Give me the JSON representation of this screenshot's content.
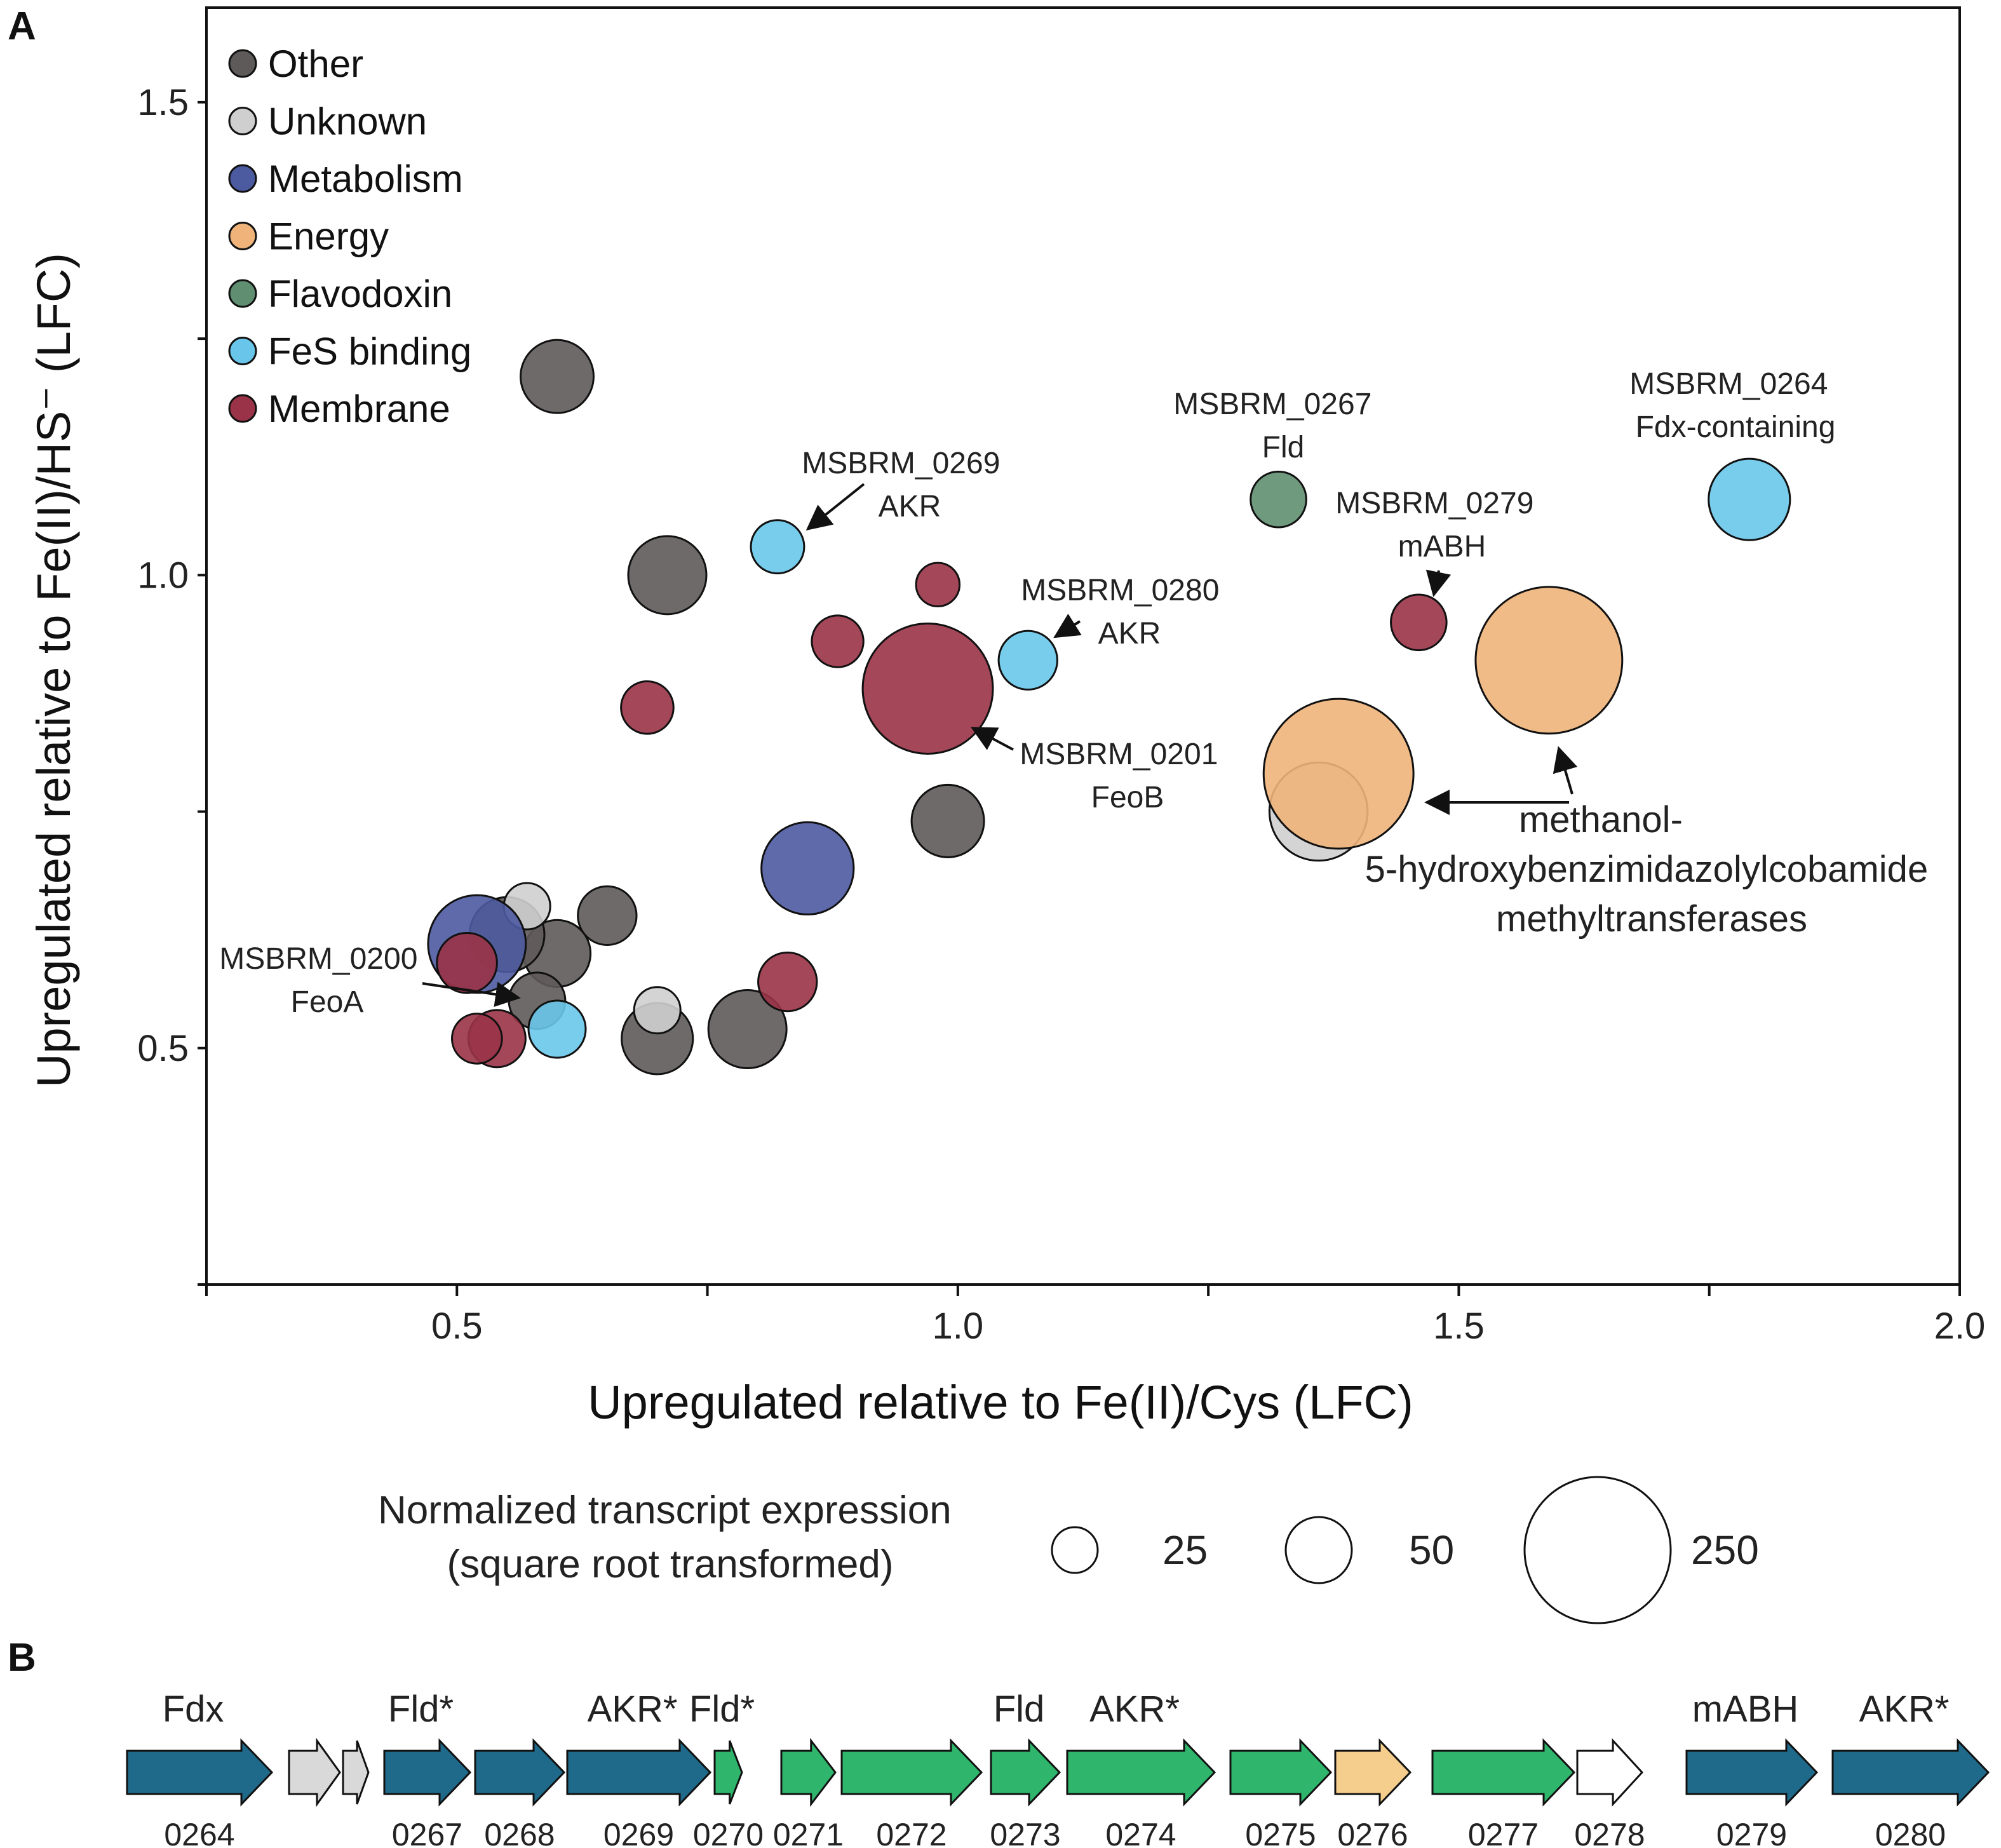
{
  "panel_a_label": "A",
  "panel_b_label": "B",
  "colors": {
    "Other": "#5f5a5a",
    "Unknown": "#cfcfcf",
    "Metabolism": "#4c5aa0",
    "Energy": "#f0b47a",
    "Flavodoxin": "#5f8f70",
    "FeS binding": "#69c6ea",
    "Membrane": "#9a3347",
    "gene_dark": "#1f6a8a",
    "gene_green": "#2fb56c",
    "gene_gray": "#d9d9d9",
    "gene_orange": "#f5cd8c",
    "gene_white": "#ffffff"
  },
  "chart_data": {
    "type": "scatter",
    "title": "",
    "xlabel": "Upregulated relative to Fe(II)/Cys (LFC)",
    "ylabel": "Upregulated relative to Fe(II)/HS⁻ (LFC)",
    "xlim": [
      0.25,
      2.0
    ],
    "ylim": [
      0.25,
      1.6
    ],
    "xticks": [
      0.5,
      1.0,
      1.5,
      2.0
    ],
    "xtick_labels": [
      "0.5",
      "1.0",
      "1.5",
      "2.0"
    ],
    "yticks": [
      0.5,
      1.0,
      1.5
    ],
    "ytick_labels": [
      "0.5",
      "1.0",
      "1.5"
    ],
    "legend": {
      "position": "top-left",
      "entries": [
        "Other",
        "Unknown",
        "Metabolism",
        "Energy",
        "Flavodoxin",
        "FeS binding",
        "Membrane"
      ]
    },
    "points": [
      {
        "x": 0.6,
        "y": 1.21,
        "size": 62,
        "cat": "Other"
      },
      {
        "x": 0.71,
        "y": 1.0,
        "size": 71,
        "cat": "Other"
      },
      {
        "x": 0.99,
        "y": 0.74,
        "size": 61,
        "cat": "Other"
      },
      {
        "x": 0.79,
        "y": 0.52,
        "size": 71,
        "cat": "Other"
      },
      {
        "x": 0.7,
        "y": 0.51,
        "size": 59,
        "cat": "Other"
      },
      {
        "x": 0.65,
        "y": 0.64,
        "size": 40,
        "cat": "Other"
      },
      {
        "x": 0.6,
        "y": 0.6,
        "size": 52,
        "cat": "Other"
      },
      {
        "x": 0.55,
        "y": 0.62,
        "size": 65,
        "cat": "Other"
      },
      {
        "x": 0.58,
        "y": 0.55,
        "size": 37,
        "cat": "Other"
      },
      {
        "x": 0.57,
        "y": 0.65,
        "size": 25,
        "cat": "Unknown"
      },
      {
        "x": 0.7,
        "y": 0.54,
        "size": 25,
        "cat": "Unknown"
      },
      {
        "x": 1.36,
        "y": 0.75,
        "size": 112,
        "cat": "Unknown"
      },
      {
        "x": 0.52,
        "y": 0.61,
        "size": 111,
        "cat": "Metabolism"
      },
      {
        "x": 0.85,
        "y": 0.69,
        "size": 99,
        "cat": "Metabolism"
      },
      {
        "x": 1.38,
        "y": 0.79,
        "size": 261,
        "cat": "Energy"
      },
      {
        "x": 1.59,
        "y": 0.91,
        "size": 250,
        "cat": "Energy"
      },
      {
        "x": 1.32,
        "y": 1.08,
        "size": 36,
        "cat": "Flavodoxin"
      },
      {
        "x": 0.82,
        "y": 1.03,
        "size": 33,
        "cat": "FeS binding"
      },
      {
        "x": 1.07,
        "y": 0.91,
        "size": 40,
        "cat": "FeS binding"
      },
      {
        "x": 1.79,
        "y": 1.08,
        "size": 77,
        "cat": "FeS binding"
      },
      {
        "x": 0.6,
        "y": 0.52,
        "size": 38,
        "cat": "FeS binding"
      },
      {
        "x": 0.98,
        "y": 0.99,
        "size": 22,
        "cat": "Membrane"
      },
      {
        "x": 0.88,
        "y": 0.93,
        "size": 31,
        "cat": "Membrane"
      },
      {
        "x": 0.69,
        "y": 0.86,
        "size": 32,
        "cat": "Membrane"
      },
      {
        "x": 0.97,
        "y": 0.88,
        "size": 197,
        "cat": "Membrane"
      },
      {
        "x": 0.83,
        "y": 0.57,
        "size": 40,
        "cat": "Membrane"
      },
      {
        "x": 1.46,
        "y": 0.95,
        "size": 36,
        "cat": "Membrane"
      },
      {
        "x": 0.51,
        "y": 0.59,
        "size": 42,
        "cat": "Membrane"
      },
      {
        "x": 0.54,
        "y": 0.51,
        "size": 38,
        "cat": "Membrane"
      },
      {
        "x": 0.52,
        "y": 0.51,
        "size": 29,
        "cat": "Membrane"
      }
    ],
    "annotations": [
      {
        "lines": [
          "MSBRM_0269",
          "AKR"
        ]
      },
      {
        "lines": [
          "MSBRM_0267",
          "Fld"
        ]
      },
      {
        "lines": [
          "MSBRM_0264",
          "Fdx-containing"
        ]
      },
      {
        "lines": [
          "MSBRM_0279",
          "mABH"
        ]
      },
      {
        "lines": [
          "MSBRM_0280",
          "AKR"
        ]
      },
      {
        "lines": [
          "MSBRM_0201",
          "FeoB"
        ]
      },
      {
        "lines": [
          "MSBRM_0200",
          "FeoA"
        ]
      },
      {
        "lines": [
          "methanol-",
          "5-hydroxybenzimidazolylcobamide",
          "methyltransferases"
        ]
      }
    ],
    "size_legend": {
      "title_lines": [
        "Normalized transcript expression",
        "(square root transformed)"
      ],
      "values": [
        "25",
        "50",
        "250"
      ]
    }
  },
  "genes": [
    {
      "num": "0264",
      "label": "Fdx",
      "color": "gene_dark"
    },
    {
      "num": "",
      "label": "",
      "color": "gene_gray"
    },
    {
      "num": "",
      "label": "",
      "color": "gene_gray"
    },
    {
      "num": "0267",
      "label": "Fld*",
      "color": "gene_dark"
    },
    {
      "num": "0268",
      "label": "",
      "color": "gene_dark"
    },
    {
      "num": "0269",
      "label": "AKR*",
      "color": "gene_dark"
    },
    {
      "num": "0270",
      "label": "Fld*",
      "color": "gene_green"
    },
    {
      "num": "0271",
      "label": "",
      "color": "gene_green"
    },
    {
      "num": "0272",
      "label": "",
      "color": "gene_green"
    },
    {
      "num": "0273",
      "label": "Fld",
      "color": "gene_green"
    },
    {
      "num": "0274",
      "label": "AKR*",
      "color": "gene_green"
    },
    {
      "num": "0275",
      "label": "",
      "color": "gene_green"
    },
    {
      "num": "0276",
      "label": "",
      "color": "gene_orange"
    },
    {
      "num": "0277",
      "label": "",
      "color": "gene_green"
    },
    {
      "num": "0278",
      "label": "",
      "color": "gene_white"
    },
    {
      "num": "0279",
      "label": "mABH",
      "color": "gene_dark"
    },
    {
      "num": "0280",
      "label": "AKR*",
      "color": "gene_dark"
    }
  ]
}
